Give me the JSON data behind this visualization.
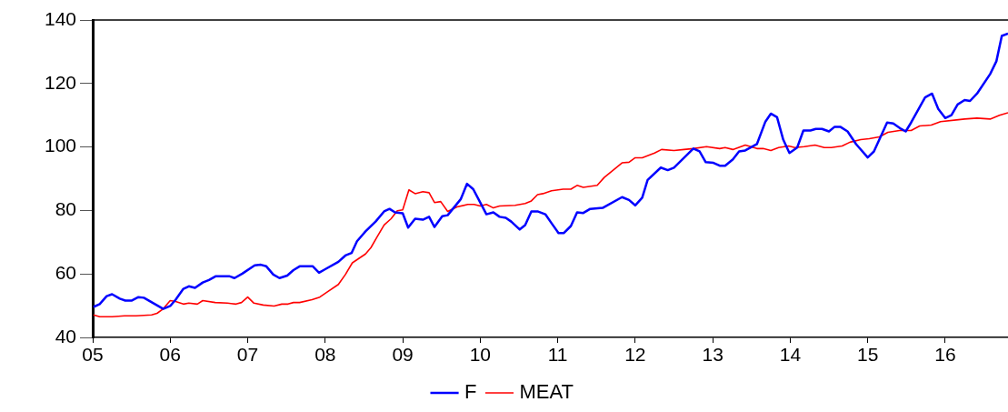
{
  "chart_data": {
    "type": "line",
    "xlim": [
      2005,
      2016.81
    ],
    "xticks": [
      {
        "value": 2005,
        "label": "05"
      },
      {
        "value": 2006,
        "label": "06"
      },
      {
        "value": 2007,
        "label": "07"
      },
      {
        "value": 2008,
        "label": "08"
      },
      {
        "value": 2009,
        "label": "09"
      },
      {
        "value": 2010,
        "label": "10"
      },
      {
        "value": 2011,
        "label": "11"
      },
      {
        "value": 2012,
        "label": "12"
      },
      {
        "value": 2013,
        "label": "13"
      },
      {
        "value": 2014,
        "label": "14"
      },
      {
        "value": 2015,
        "label": "15"
      },
      {
        "value": 2016,
        "label": "16"
      }
    ],
    "ylim": [
      40,
      140
    ],
    "yticks": [
      40,
      60,
      80,
      100,
      120,
      140
    ],
    "grid": false,
    "legend": "bottom",
    "marker": "none",
    "line_style": "solid",
    "series": [
      {
        "name": "F",
        "color": "#0000ff",
        "x": [
          2005.01,
          2005.09,
          2005.18,
          2005.25,
          2005.35,
          2005.42,
          2005.5,
          2005.59,
          2005.66,
          2005.91,
          2006.0,
          2006.07,
          2006.17,
          2006.24,
          2006.32,
          2006.42,
          2006.5,
          2006.59,
          2006.76,
          2006.83,
          2006.93,
          2007.09,
          2007.17,
          2007.24,
          2007.33,
          2007.41,
          2007.51,
          2007.59,
          2007.67,
          2007.84,
          2007.92,
          2008.0,
          2008.17,
          2008.26,
          2008.34,
          2008.41,
          2008.52,
          2008.65,
          2008.76,
          2008.83,
          2008.9,
          2009.0,
          2009.07,
          2009.16,
          2009.26,
          2009.34,
          2009.41,
          2009.51,
          2009.58,
          2009.75,
          2009.83,
          2009.91,
          2010.0,
          2010.08,
          2010.17,
          2010.25,
          2010.33,
          2010.4,
          2010.51,
          2010.58,
          2010.66,
          2010.74,
          2010.84,
          2010.92,
          2011.01,
          2011.08,
          2011.17,
          2011.25,
          2011.33,
          2011.42,
          2011.58,
          2011.83,
          2011.92,
          2012.0,
          2012.09,
          2012.16,
          2012.33,
          2012.42,
          2012.5,
          2012.75,
          2012.83,
          2012.91,
          2013.01,
          2013.09,
          2013.16,
          2013.26,
          2013.34,
          2013.42,
          2013.57,
          2013.68,
          2013.75,
          2013.83,
          2013.91,
          2013.99,
          2014.09,
          2014.17,
          2014.26,
          2014.33,
          2014.41,
          2014.5,
          2014.57,
          2014.65,
          2014.74,
          2014.85,
          2015.0,
          2015.08,
          2015.25,
          2015.33,
          2015.43,
          2015.49,
          2015.56,
          2015.74,
          2015.83,
          2015.91,
          2016.0,
          2016.08,
          2016.16,
          2016.25,
          2016.32,
          2016.41,
          2016.58,
          2016.66,
          2016.73,
          2016.81
        ],
        "values": [
          49.6,
          50.5,
          53,
          53.6,
          52.2,
          51.6,
          51.6,
          52.7,
          52.5,
          49,
          49.9,
          51.9,
          55.3,
          56.1,
          55.6,
          57.3,
          58.1,
          59.3,
          59.3,
          58.7,
          60.1,
          62.7,
          62.9,
          62.4,
          59.8,
          58.7,
          59.5,
          61.2,
          62.4,
          62.4,
          60.4,
          61.5,
          63.8,
          65.8,
          66.6,
          70.3,
          73.4,
          76.5,
          79.7,
          80.5,
          79.4,
          79.1,
          74.6,
          77.4,
          77.1,
          78,
          74.8,
          78.2,
          78.5,
          83.6,
          88.4,
          86.7,
          82.5,
          78.8,
          79.4,
          78,
          77.7,
          76.5,
          74,
          75.4,
          79.7,
          79.7,
          78.8,
          76,
          72.9,
          72.9,
          75.1,
          79.4,
          79.2,
          80.5,
          80.8,
          84.2,
          83.3,
          81.6,
          84,
          89.6,
          93.5,
          92.7,
          93.5,
          99.5,
          98.6,
          95.2,
          95,
          94.1,
          94.1,
          96.1,
          98.6,
          98.9,
          100.9,
          108,
          110.5,
          109.4,
          102.3,
          98.1,
          99.8,
          105.2,
          105.2,
          105.7,
          105.7,
          104.9,
          106.3,
          106.3,
          104.9,
          100.9,
          96.7,
          98.6,
          107.7,
          107.4,
          105.7,
          104.9,
          107.7,
          115.6,
          116.8,
          112,
          109.1,
          110,
          113.4,
          114.8,
          114.5,
          116.8,
          123,
          127,
          135,
          135.7
        ]
      },
      {
        "name": "MEAT",
        "color": "#ff0000",
        "x": [
          2005.01,
          2005.09,
          2005.25,
          2005.41,
          2005.56,
          2005.76,
          2005.83,
          2005.91,
          2006.0,
          2006.07,
          2006.17,
          2006.24,
          2006.35,
          2006.42,
          2006.58,
          2006.74,
          2006.85,
          2006.92,
          2007.0,
          2007.08,
          2007.2,
          2007.34,
          2007.44,
          2007.52,
          2007.59,
          2007.67,
          2007.83,
          2007.93,
          2008.02,
          2008.17,
          2008.26,
          2008.35,
          2008.52,
          2008.59,
          2008.67,
          2008.76,
          2008.85,
          2008.93,
          2009.0,
          2009.08,
          2009.16,
          2009.26,
          2009.34,
          2009.41,
          2009.49,
          2009.58,
          2009.7,
          2009.84,
          2009.92,
          2010.0,
          2010.08,
          2010.17,
          2010.25,
          2010.45,
          2010.58,
          2010.66,
          2010.74,
          2010.81,
          2010.92,
          2011.07,
          2011.17,
          2011.25,
          2011.33,
          2011.51,
          2011.6,
          2011.83,
          2011.92,
          2012.0,
          2012.09,
          2012.25,
          2012.34,
          2012.5,
          2012.63,
          2012.75,
          2012.92,
          2013.09,
          2013.16,
          2013.26,
          2013.42,
          2013.57,
          2013.65,
          2013.75,
          2013.85,
          2013.98,
          2014.06,
          2014.18,
          2014.32,
          2014.44,
          2014.53,
          2014.67,
          2014.77,
          2014.91,
          2015.02,
          2015.15,
          2015.26,
          2015.41,
          2015.56,
          2015.67,
          2015.82,
          2015.94,
          2016.17,
          2016.25,
          2016.41,
          2016.58,
          2016.7,
          2016.81
        ],
        "values": [
          47.1,
          46.5,
          46.5,
          46.8,
          46.8,
          47.1,
          47.6,
          49,
          51.6,
          51.3,
          50.5,
          50.8,
          50.5,
          51.6,
          51,
          50.8,
          50.5,
          51,
          52.7,
          50.8,
          50.2,
          49.9,
          50.5,
          50.5,
          51,
          51,
          51.9,
          52.7,
          54.2,
          56.7,
          59.8,
          63.5,
          66.3,
          68.3,
          71.7,
          75.4,
          77.4,
          79.9,
          80.2,
          86.5,
          85.3,
          85.9,
          85.6,
          82.5,
          82.8,
          79.7,
          81.1,
          81.9,
          81.9,
          81.4,
          81.9,
          80.8,
          81.4,
          81.6,
          82.2,
          83,
          85,
          85.3,
          86.2,
          86.7,
          86.7,
          87.9,
          87.3,
          87.9,
          90.4,
          95,
          95.2,
          96.6,
          96.6,
          98.1,
          99.2,
          98.9,
          99.2,
          99.5,
          100.1,
          99.5,
          99.8,
          99.2,
          100.6,
          99.5,
          99.5,
          98.9,
          99.8,
          100.3,
          99.8,
          100.1,
          100.6,
          99.8,
          99.8,
          100.3,
          101.5,
          102.3,
          102.6,
          103.2,
          104.6,
          105.2,
          105.2,
          106.6,
          106.9,
          108,
          108.6,
          108.8,
          109.1,
          108.8,
          110,
          110.8
        ]
      }
    ]
  }
}
